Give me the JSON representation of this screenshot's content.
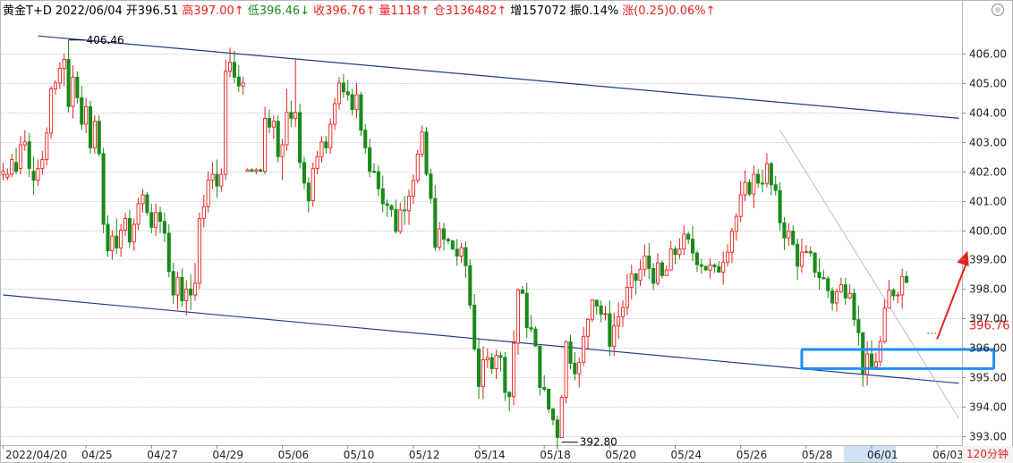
{
  "header": {
    "symbol": "黄金T+D",
    "date": "2022/06/04",
    "open": "开396.51",
    "high": "高397.00↑",
    "low": "低396.46↓",
    "close": "收396.76↑",
    "volume": "量1118↑",
    "position": "仓3136482↑",
    "increase": "增157072",
    "amplitude": "振0.14%",
    "change": "涨(0.25)0.06%↑"
  },
  "period_label": "120分钟",
  "colors": {
    "up": "#e8211e",
    "down": "#1a8a1a",
    "trendline": "#1f3c88",
    "box": "#1e90ff",
    "arrow": "#e8211e"
  },
  "chart_data": {
    "type": "candlestick",
    "title": "",
    "ylim": [
      392.7,
      407.0
    ],
    "y_ticks": [
      393,
      394,
      395,
      396,
      397,
      398,
      399,
      400,
      401,
      402,
      403,
      404,
      405,
      406
    ],
    "y_tick_labels": [
      "393.00",
      "394.00",
      "395.00",
      "396.00",
      "397.00",
      "398.00",
      "399.00",
      "400.00",
      "401.00",
      "402.00",
      "403.00",
      "404.00",
      "405.00",
      "406.00"
    ],
    "x_labels": [
      {
        "i": 0,
        "label": "2022/04/20"
      },
      {
        "i": 19,
        "label": "04/25"
      },
      {
        "i": 34,
        "label": "04/27"
      },
      {
        "i": 49,
        "label": "04/29"
      },
      {
        "i": 64,
        "label": "05/06"
      },
      {
        "i": 79,
        "label": "05/10"
      },
      {
        "i": 94,
        "label": "05/12"
      },
      {
        "i": 109,
        "label": "05/14"
      },
      {
        "i": 124,
        "label": "05/18"
      },
      {
        "i": 139,
        "label": "05/20"
      },
      {
        "i": 154,
        "label": "05/24"
      },
      {
        "i": 169,
        "label": "05/26"
      },
      {
        "i": 184,
        "label": "05/28"
      },
      {
        "i": 199,
        "label": "06/01"
      },
      {
        "i": 214,
        "label": "06/03"
      }
    ],
    "grid": true,
    "annotations": [
      {
        "i": 15,
        "value": 406.46,
        "label": "406.46"
      },
      {
        "i": 128,
        "value": 392.8,
        "label": "392.80"
      },
      {
        "i": 213,
        "value": 396.76,
        "label": "396.76"
      }
    ],
    "trendlines": [
      {
        "from": {
          "i": 8,
          "y": 406.6
        },
        "to": {
          "i": 219,
          "y": 403.8
        }
      },
      {
        "from": {
          "i": 0,
          "y": 397.8
        },
        "to": {
          "i": 219,
          "y": 394.8
        }
      },
      {
        "from": {
          "i": 178,
          "y": 403.4
        },
        "to": {
          "i": 219,
          "y": 393.6
        }
      }
    ],
    "highlight_box": {
      "i_from": 183,
      "i_to": 227,
      "y_top": 395.95,
      "y_bottom": 395.3
    },
    "arrow": {
      "from": {
        "i": 214,
        "y": 396.3
      },
      "to": {
        "i": 221,
        "y": 399.3
      }
    },
    "candles": [
      {
        "o": 401.9,
        "h": 402.3,
        "l": 401.7,
        "c": 402.0
      },
      {
        "o": 401.8,
        "h": 402.1,
        "l": 401.7,
        "c": 401.9
      },
      {
        "o": 401.9,
        "h": 402.6,
        "l": 401.8,
        "c": 402.4
      },
      {
        "o": 402.3,
        "h": 402.8,
        "l": 401.9,
        "c": 402.0
      },
      {
        "o": 402.1,
        "h": 403.2,
        "l": 401.9,
        "c": 402.9
      },
      {
        "o": 402.9,
        "h": 403.4,
        "l": 402.7,
        "c": 403.0
      },
      {
        "o": 403.0,
        "h": 403.3,
        "l": 401.8,
        "c": 402.1
      },
      {
        "o": 402.0,
        "h": 402.5,
        "l": 401.2,
        "c": 401.7
      },
      {
        "o": 401.7,
        "h": 402.4,
        "l": 401.5,
        "c": 402.1
      },
      {
        "o": 402.1,
        "h": 402.7,
        "l": 401.9,
        "c": 402.4
      },
      {
        "o": 402.4,
        "h": 403.5,
        "l": 402.2,
        "c": 403.3
      },
      {
        "o": 403.3,
        "h": 404.9,
        "l": 403.1,
        "c": 404.8
      },
      {
        "o": 404.8,
        "h": 405.1,
        "l": 404.6,
        "c": 405.0
      },
      {
        "o": 405.0,
        "h": 405.7,
        "l": 404.8,
        "c": 405.5
      },
      {
        "o": 405.5,
        "h": 406.0,
        "l": 404.9,
        "c": 405.8
      },
      {
        "o": 405.8,
        "h": 406.46,
        "l": 404.0,
        "c": 404.2
      },
      {
        "o": 404.2,
        "h": 405.6,
        "l": 403.8,
        "c": 405.2
      },
      {
        "o": 405.2,
        "h": 405.4,
        "l": 404.3,
        "c": 404.5
      },
      {
        "o": 404.5,
        "h": 404.9,
        "l": 403.4,
        "c": 403.6
      },
      {
        "o": 403.6,
        "h": 404.5,
        "l": 403.3,
        "c": 404.2
      },
      {
        "o": 404.2,
        "h": 404.4,
        "l": 402.6,
        "c": 402.8
      },
      {
        "o": 402.8,
        "h": 403.9,
        "l": 402.6,
        "c": 403.7
      },
      {
        "o": 403.7,
        "h": 403.9,
        "l": 402.5,
        "c": 402.6
      },
      {
        "o": 402.6,
        "h": 402.8,
        "l": 399.9,
        "c": 400.2
      },
      {
        "o": 400.2,
        "h": 400.5,
        "l": 399.1,
        "c": 399.3
      },
      {
        "o": 399.3,
        "h": 400.0,
        "l": 399.0,
        "c": 399.8
      },
      {
        "o": 399.8,
        "h": 400.4,
        "l": 399.2,
        "c": 399.4
      },
      {
        "o": 399.4,
        "h": 400.2,
        "l": 399.1,
        "c": 400.0
      },
      {
        "o": 400.0,
        "h": 400.6,
        "l": 399.8,
        "c": 400.4
      },
      {
        "o": 400.4,
        "h": 400.7,
        "l": 399.4,
        "c": 399.6
      },
      {
        "o": 399.6,
        "h": 400.4,
        "l": 399.3,
        "c": 400.2
      },
      {
        "o": 400.2,
        "h": 401.1,
        "l": 400.0,
        "c": 400.9
      },
      {
        "o": 400.9,
        "h": 401.4,
        "l": 400.6,
        "c": 401.2
      },
      {
        "o": 401.2,
        "h": 401.3,
        "l": 400.5,
        "c": 400.6
      },
      {
        "o": 400.6,
        "h": 400.9,
        "l": 399.9,
        "c": 400.1
      },
      {
        "o": 400.1,
        "h": 400.9,
        "l": 399.8,
        "c": 400.6
      },
      {
        "o": 400.6,
        "h": 400.8,
        "l": 399.9,
        "c": 400.3
      },
      {
        "o": 400.3,
        "h": 400.6,
        "l": 399.6,
        "c": 399.9
      },
      {
        "o": 399.9,
        "h": 400.2,
        "l": 398.4,
        "c": 398.6
      },
      {
        "o": 398.6,
        "h": 398.9,
        "l": 397.5,
        "c": 397.8
      },
      {
        "o": 397.8,
        "h": 398.6,
        "l": 397.3,
        "c": 398.4
      },
      {
        "o": 398.4,
        "h": 398.7,
        "l": 397.4,
        "c": 397.6
      },
      {
        "o": 397.6,
        "h": 398.3,
        "l": 397.1,
        "c": 398.0
      },
      {
        "o": 398.0,
        "h": 398.5,
        "l": 397.3,
        "c": 397.8
      },
      {
        "o": 397.8,
        "h": 398.9,
        "l": 397.6,
        "c": 398.2
      },
      {
        "o": 398.2,
        "h": 400.6,
        "l": 398.0,
        "c": 400.4
      },
      {
        "o": 400.4,
        "h": 401.2,
        "l": 400.1,
        "c": 400.8
      },
      {
        "o": 400.8,
        "h": 402.0,
        "l": 400.6,
        "c": 401.7
      },
      {
        "o": 401.7,
        "h": 402.3,
        "l": 401.4,
        "c": 401.9
      },
      {
        "o": 401.9,
        "h": 402.4,
        "l": 401.1,
        "c": 401.5
      },
      {
        "o": 401.5,
        "h": 402.1,
        "l": 401.3,
        "c": 401.9
      },
      {
        "o": 401.9,
        "h": 405.8,
        "l": 401.7,
        "c": 405.4
      },
      {
        "o": 405.4,
        "h": 406.2,
        "l": 405.2,
        "c": 405.7
      },
      {
        "o": 405.7,
        "h": 406.1,
        "l": 405.0,
        "c": 405.2
      },
      {
        "o": 405.2,
        "h": 405.6,
        "l": 404.7,
        "c": 404.9
      },
      {
        "o": 404.9,
        "h": 405.2,
        "l": 404.6,
        "c": 405.0
      },
      {
        "o": 402.0,
        "h": 402.1,
        "l": 402.0,
        "c": 402.05
      },
      {
        "o": 402.05,
        "h": 402.1,
        "l": 402.0,
        "c": 402.0
      },
      {
        "o": 402.0,
        "h": 402.1,
        "l": 401.9,
        "c": 402.05
      },
      {
        "o": 402.05,
        "h": 402.1,
        "l": 402.0,
        "c": 402.0
      },
      {
        "o": 402.0,
        "h": 404.2,
        "l": 401.9,
        "c": 403.8
      },
      {
        "o": 403.8,
        "h": 404.1,
        "l": 403.3,
        "c": 403.5
      },
      {
        "o": 403.5,
        "h": 403.9,
        "l": 403.1,
        "c": 403.7
      },
      {
        "o": 403.7,
        "h": 403.9,
        "l": 402.3,
        "c": 402.5
      },
      {
        "o": 402.5,
        "h": 403.1,
        "l": 401.7,
        "c": 402.9
      },
      {
        "o": 402.9,
        "h": 404.8,
        "l": 402.7,
        "c": 404.0
      },
      {
        "o": 404.0,
        "h": 404.4,
        "l": 403.5,
        "c": 403.8
      },
      {
        "o": 403.8,
        "h": 405.8,
        "l": 403.5,
        "c": 404.0
      },
      {
        "o": 404.0,
        "h": 404.3,
        "l": 402.1,
        "c": 402.3
      },
      {
        "o": 402.3,
        "h": 402.5,
        "l": 401.4,
        "c": 401.6
      },
      {
        "o": 401.6,
        "h": 401.8,
        "l": 400.6,
        "c": 401.0
      },
      {
        "o": 401.0,
        "h": 402.3,
        "l": 400.8,
        "c": 402.1
      },
      {
        "o": 402.1,
        "h": 402.7,
        "l": 401.9,
        "c": 402.5
      },
      {
        "o": 402.5,
        "h": 403.2,
        "l": 402.3,
        "c": 403.0
      },
      {
        "o": 403.0,
        "h": 403.2,
        "l": 402.6,
        "c": 402.8
      },
      {
        "o": 402.8,
        "h": 403.8,
        "l": 402.6,
        "c": 403.6
      },
      {
        "o": 403.6,
        "h": 404.5,
        "l": 403.4,
        "c": 404.3
      },
      {
        "o": 404.3,
        "h": 405.2,
        "l": 404.1,
        "c": 405.0
      },
      {
        "o": 405.0,
        "h": 405.3,
        "l": 404.5,
        "c": 404.7
      },
      {
        "o": 404.7,
        "h": 405.1,
        "l": 404.4,
        "c": 404.6
      },
      {
        "o": 404.6,
        "h": 404.8,
        "l": 403.9,
        "c": 404.1
      },
      {
        "o": 404.1,
        "h": 405.0,
        "l": 403.8,
        "c": 404.6
      },
      {
        "o": 404.6,
        "h": 404.7,
        "l": 403.2,
        "c": 403.4
      },
      {
        "o": 403.4,
        "h": 403.6,
        "l": 402.6,
        "c": 402.8
      },
      {
        "o": 402.8,
        "h": 403.1,
        "l": 401.8,
        "c": 402.0
      }
    ]
  }
}
